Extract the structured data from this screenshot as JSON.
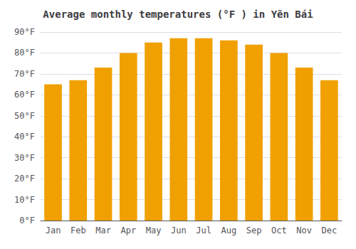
{
  "chart_data": {
    "type": "bar",
    "title": "Average monthly temperatures (°F ) in Yẽn Bái",
    "categories": [
      "Jan",
      "Feb",
      "Mar",
      "Apr",
      "May",
      "Jun",
      "Jul",
      "Aug",
      "Sep",
      "Oct",
      "Nov",
      "Dec"
    ],
    "values": [
      65,
      67,
      73,
      80,
      85,
      87,
      87,
      86,
      84,
      80,
      73,
      67
    ],
    "color": "#F0A000",
    "ylim": [
      0,
      90
    ],
    "yticks": [
      {
        "value": 0,
        "label": "0°F"
      },
      {
        "value": 10,
        "label": "10°F"
      },
      {
        "value": 20,
        "label": "20°F"
      },
      {
        "value": 30,
        "label": "30°F"
      },
      {
        "value": 40,
        "label": "40°F"
      },
      {
        "value": 50,
        "label": "50°F"
      },
      {
        "value": 60,
        "label": "60°F"
      },
      {
        "value": 70,
        "label": "70°F"
      },
      {
        "value": 80,
        "label": "80°F"
      },
      {
        "value": 90,
        "label": "90°F"
      }
    ],
    "grid": true
  }
}
